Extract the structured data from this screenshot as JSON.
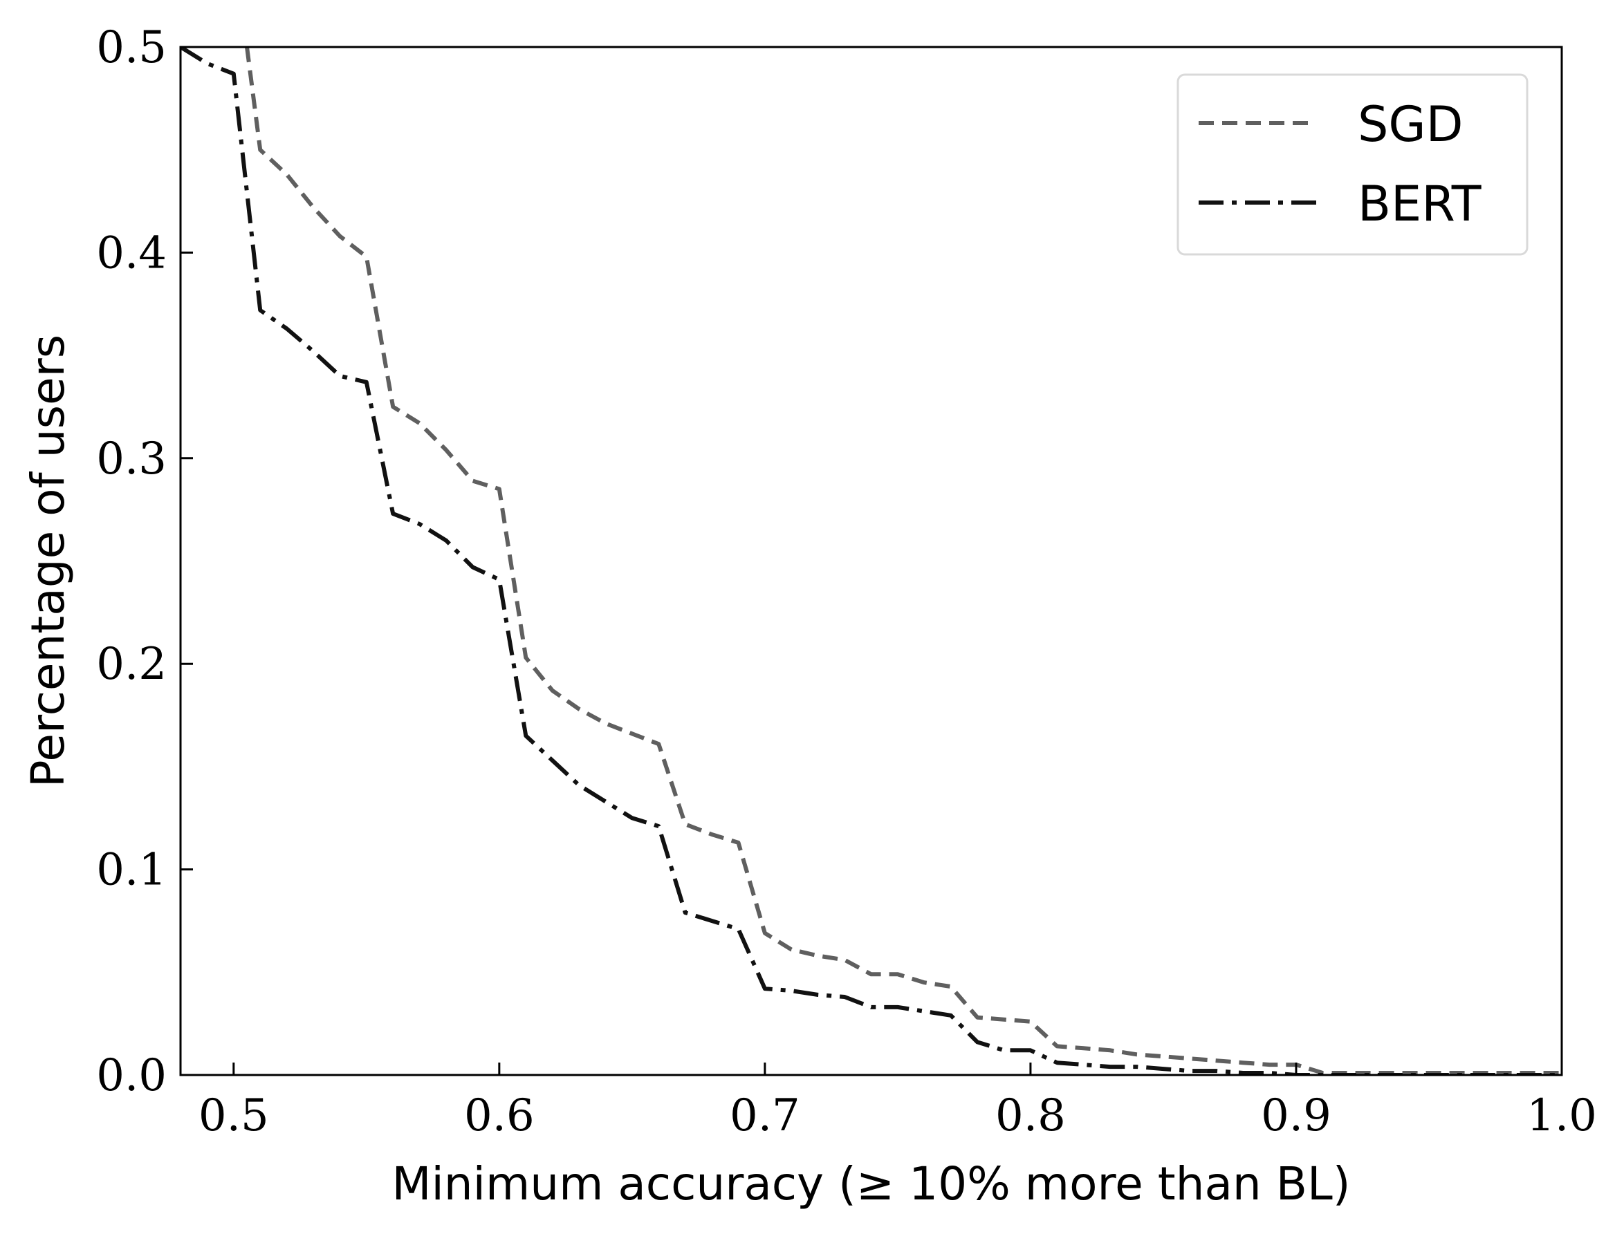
{
  "chart_data": {
    "type": "line",
    "xlabel": "Minimum accuracy (≥ 10% more than BL)",
    "ylabel": "Percentage of users",
    "xlim": [
      0.48,
      1.0
    ],
    "ylim": [
      0.0,
      0.5
    ],
    "xticks": [
      "0.5",
      "0.6",
      "0.7",
      "0.8",
      "0.9",
      "1.0"
    ],
    "yticks": [
      "0.0",
      "0.1",
      "0.2",
      "0.3",
      "0.4",
      "0.5"
    ],
    "grid": false,
    "legend": {
      "placement": "top-right"
    },
    "series": [
      {
        "name": "SGD",
        "color": "#5f5f5f",
        "style": "dashed",
        "x": [
          0.505,
          0.51,
          0.52,
          0.53,
          0.54,
          0.55,
          0.56,
          0.57,
          0.58,
          0.59,
          0.6,
          0.61,
          0.62,
          0.63,
          0.64,
          0.65,
          0.66,
          0.67,
          0.68,
          0.69,
          0.7,
          0.71,
          0.72,
          0.73,
          0.74,
          0.75,
          0.76,
          0.77,
          0.78,
          0.79,
          0.8,
          0.81,
          0.82,
          0.83,
          0.84,
          0.85,
          0.86,
          0.87,
          0.88,
          0.89,
          0.9,
          0.91,
          0.92,
          0.95,
          1.0
        ],
        "y": [
          0.5,
          0.45,
          0.438,
          0.422,
          0.408,
          0.398,
          0.325,
          0.317,
          0.304,
          0.289,
          0.285,
          0.203,
          0.187,
          0.178,
          0.171,
          0.166,
          0.161,
          0.122,
          0.117,
          0.113,
          0.069,
          0.061,
          0.058,
          0.056,
          0.049,
          0.049,
          0.045,
          0.043,
          0.028,
          0.027,
          0.026,
          0.014,
          0.013,
          0.012,
          0.01,
          0.009,
          0.008,
          0.007,
          0.006,
          0.005,
          0.005,
          0.001,
          0.001,
          0.001,
          0.001
        ]
      },
      {
        "name": "BERT",
        "color": "#111111",
        "style": "dashdot",
        "x": [
          0.48,
          0.49,
          0.5,
          0.51,
          0.52,
          0.53,
          0.54,
          0.55,
          0.56,
          0.57,
          0.58,
          0.59,
          0.6,
          0.61,
          0.62,
          0.63,
          0.64,
          0.65,
          0.66,
          0.67,
          0.68,
          0.69,
          0.7,
          0.71,
          0.72,
          0.73,
          0.74,
          0.75,
          0.76,
          0.77,
          0.78,
          0.79,
          0.8,
          0.81,
          0.82,
          0.83,
          0.84,
          0.85,
          0.86,
          0.87,
          0.88,
          0.89,
          0.9,
          0.91,
          1.0
        ],
        "y": [
          0.5,
          0.492,
          0.487,
          0.372,
          0.363,
          0.352,
          0.34,
          0.337,
          0.273,
          0.268,
          0.26,
          0.247,
          0.241,
          0.165,
          0.153,
          0.141,
          0.133,
          0.125,
          0.121,
          0.079,
          0.075,
          0.071,
          0.042,
          0.041,
          0.039,
          0.038,
          0.033,
          0.033,
          0.031,
          0.029,
          0.016,
          0.012,
          0.012,
          0.006,
          0.005,
          0.004,
          0.004,
          0.003,
          0.002,
          0.002,
          0.001,
          0.001,
          0.0,
          0.0,
          0.0
        ]
      }
    ]
  }
}
